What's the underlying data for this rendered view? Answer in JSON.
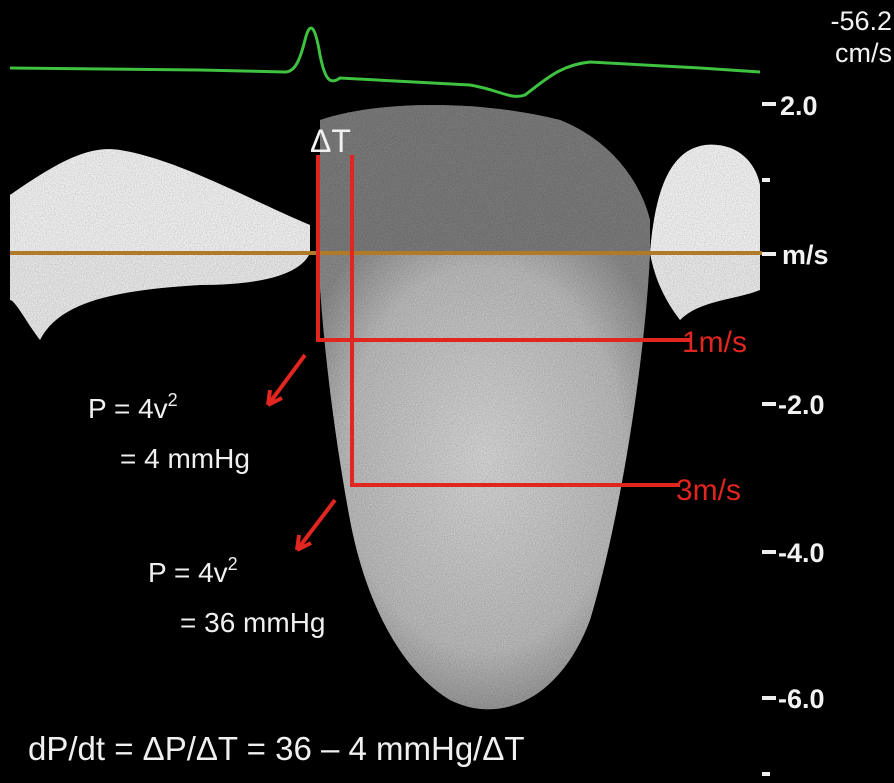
{
  "scale": {
    "ecg_value": "-56.2",
    "ecg_unit": "cm/s",
    "unit": "m/s",
    "labels": [
      "2.0",
      "-2.0",
      "-4.0",
      "-6.0"
    ]
  },
  "annotations": {
    "delta_t": "ΔT",
    "velocity_1": "1m/s",
    "velocity_3": "3m/s",
    "pressure_1": {
      "formula": "P = 4v",
      "exponent": "2",
      "result": "= 4 mmHg"
    },
    "pressure_2": {
      "formula": "P = 4v",
      "exponent": "2",
      "result": "= 36 mmHg"
    },
    "equation": "dP/dt = ΔP/ΔT = 36 – 4 mmHg/ΔT"
  }
}
